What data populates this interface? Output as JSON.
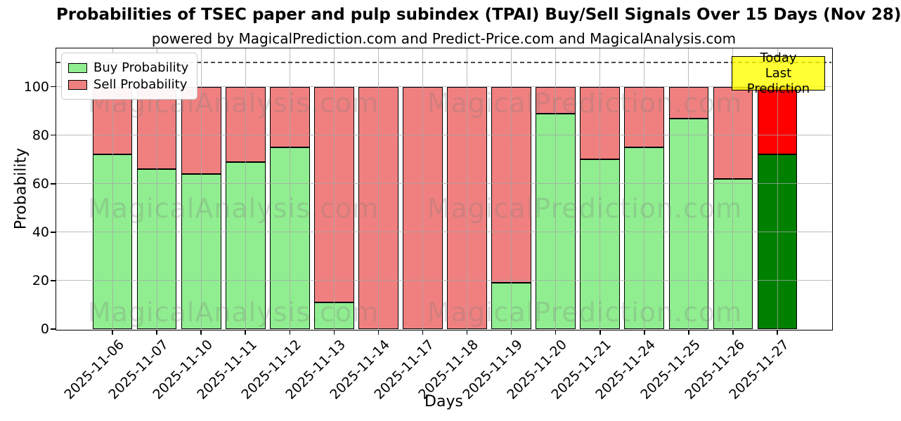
{
  "chart": {
    "title": "Probabilities of TSEC paper and pulp subindex (TPAI) Buy/Sell Signals Over 15 Days (Nov 28)",
    "subtitle": "powered by MagicalPrediction.com and Predict-Price.com and MagicalAnalysis.com",
    "xlabel": "Days",
    "ylabel": "Probability"
  },
  "annotation": {
    "line1": "Today",
    "line2": "Last Prediction",
    "box_color": "#ffff00",
    "border_color": "#000000"
  },
  "watermarks": {
    "left_text": "MagicalAnalysis.com",
    "right_text": "MagicalPrediction.com"
  },
  "chart_data": {
    "type": "bar",
    "stacked": true,
    "title": "Probabilities of TSEC paper and pulp subindex (TPAI) Buy/Sell Signals Over 15 Days (Nov 28)",
    "xlabel": "Days",
    "ylabel": "Probability",
    "ylim": [
      0,
      116
    ],
    "yticks": [
      0,
      20,
      40,
      60,
      80,
      100
    ],
    "dashed_line_y": 110,
    "grid": true,
    "legend_position": "upper left",
    "today_index": 15,
    "categories": [
      "2025-11-06",
      "2025-11-07",
      "2025-11-10",
      "2025-11-11",
      "2025-11-12",
      "2025-11-13",
      "2025-11-14",
      "2025-11-17",
      "2025-11-18",
      "2025-11-19",
      "2025-11-20",
      "2025-11-21",
      "2025-11-24",
      "2025-11-25",
      "2025-11-26",
      "2025-11-27"
    ],
    "series": [
      {
        "name": "Buy Probability",
        "color": "#90ee90",
        "today_color": "#008000",
        "values": [
          72,
          66,
          64,
          69,
          75,
          11,
          0,
          0,
          0,
          19,
          89,
          70,
          75,
          87,
          62,
          72
        ]
      },
      {
        "name": "Sell Probability",
        "color": "#f08080",
        "today_color": "#ff0000",
        "values": [
          28,
          34,
          36,
          31,
          25,
          89,
          100,
          100,
          100,
          81,
          11,
          30,
          25,
          13,
          38,
          28
        ]
      }
    ]
  }
}
